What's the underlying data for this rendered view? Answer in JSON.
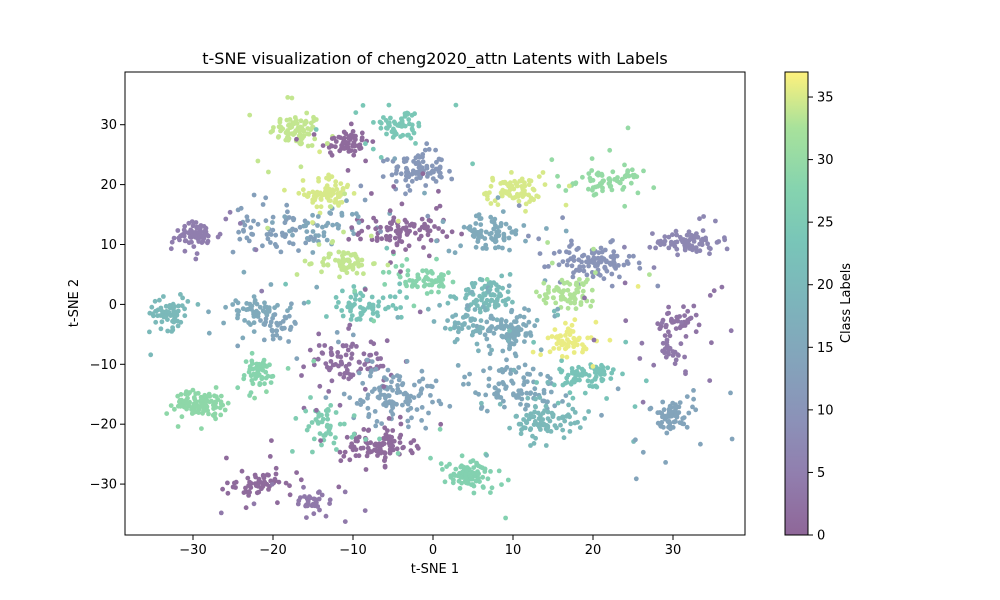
{
  "chart_data": {
    "type": "scatter",
    "title": "t-SNE visualization of cheng2020_attn Latents with Labels",
    "xlabel": "t-SNE 1",
    "ylabel": "t-SNE 2",
    "xlim": [
      -38.5,
      39
    ],
    "ylim": [
      -38.5,
      38.8
    ],
    "xticks": [
      -30,
      -20,
      -10,
      0,
      10,
      20,
      30
    ],
    "yticks": [
      -30,
      -20,
      -10,
      0,
      10,
      20,
      30
    ],
    "grid": false,
    "colormap": "viridis",
    "point_alpha": 0.6,
    "colorbar": {
      "label": "Class Labels",
      "range": [
        0,
        37
      ],
      "ticks": [
        0,
        5,
        10,
        15,
        20,
        25,
        30,
        35
      ]
    },
    "clusters": [
      {
        "x": -17,
        "y": 29,
        "label": 34,
        "count": 70,
        "sx": 1.6,
        "sy": 1.3
      },
      {
        "x": -11,
        "y": 27,
        "label": 1,
        "count": 60,
        "sx": 1.5,
        "sy": 1.2
      },
      {
        "x": -4,
        "y": 30,
        "label": 24,
        "count": 50,
        "sx": 1.6,
        "sy": 1.3
      },
      {
        "x": -2,
        "y": 22.5,
        "label": 11,
        "count": 80,
        "sx": 1.7,
        "sy": 1.4
      },
      {
        "x": -13,
        "y": 18.5,
        "label": 35,
        "count": 70,
        "sx": 1.5,
        "sy": 1.4
      },
      {
        "x": 10,
        "y": 19,
        "label": 35,
        "count": 70,
        "sx": 1.7,
        "sy": 1.2
      },
      {
        "x": 22,
        "y": 20.5,
        "label": 30,
        "count": 60,
        "sx": 2.0,
        "sy": 0.9
      },
      {
        "x": -29.5,
        "y": 11.5,
        "label": 5,
        "count": 60,
        "sx": 1.5,
        "sy": 1.1
      },
      {
        "x": -20,
        "y": 12.5,
        "label": 13,
        "count": 60,
        "sx": 2.4,
        "sy": 2.0
      },
      {
        "x": -13,
        "y": 13,
        "label": 15,
        "count": 30,
        "sx": 2.0,
        "sy": 1.5
      },
      {
        "x": -4,
        "y": 12,
        "label": 1,
        "count": 80,
        "sx": 2.6,
        "sy": 1.3
      },
      {
        "x": 7,
        "y": 12,
        "label": 16,
        "count": 70,
        "sx": 2.4,
        "sy": 1.6
      },
      {
        "x": 20,
        "y": 7,
        "label": 10,
        "count": 100,
        "sx": 2.6,
        "sy": 1.5
      },
      {
        "x": 32,
        "y": 10.5,
        "label": 7,
        "count": 70,
        "sx": 2.0,
        "sy": 1.0
      },
      {
        "x": -11,
        "y": 7,
        "label": 34,
        "count": 60,
        "sx": 1.6,
        "sy": 1.0
      },
      {
        "x": -1.5,
        "y": 4,
        "label": 28,
        "count": 50,
        "sx": 2.0,
        "sy": 1.2
      },
      {
        "x": 7,
        "y": 1.5,
        "label": 21,
        "count": 70,
        "sx": 1.8,
        "sy": 1.3
      },
      {
        "x": 17,
        "y": 2,
        "label": 33,
        "count": 60,
        "sx": 1.8,
        "sy": 1.3
      },
      {
        "x": -33,
        "y": -1.5,
        "label": 20,
        "count": 60,
        "sx": 1.2,
        "sy": 1.3
      },
      {
        "x": -22,
        "y": -1,
        "label": 16,
        "count": 50,
        "sx": 1.3,
        "sy": 1.0
      },
      {
        "x": -19,
        "y": -3,
        "label": 14,
        "count": 30,
        "sx": 1.2,
        "sy": 1.2
      },
      {
        "x": -9,
        "y": -0.5,
        "label": 23,
        "count": 60,
        "sx": 2.2,
        "sy": 1.3
      },
      {
        "x": 9.5,
        "y": -4.5,
        "label": 16,
        "count": 80,
        "sx": 1.8,
        "sy": 1.4
      },
      {
        "x": 4,
        "y": -3,
        "label": 18,
        "count": 40,
        "sx": 1.6,
        "sy": 1.6
      },
      {
        "x": 17,
        "y": -6,
        "label": 36,
        "count": 50,
        "sx": 1.2,
        "sy": 1.3
      },
      {
        "x": 30.5,
        "y": -3.5,
        "label": 3,
        "count": 40,
        "sx": 1.4,
        "sy": 1.3
      },
      {
        "x": -10,
        "y": -9.5,
        "label": 2,
        "count": 70,
        "sx": 2.6,
        "sy": 1.9
      },
      {
        "x": -5,
        "y": -15,
        "label": 14,
        "count": 110,
        "sx": 2.8,
        "sy": 2.3
      },
      {
        "x": 10,
        "y": -14,
        "label": 15,
        "count": 80,
        "sx": 3.0,
        "sy": 2.0
      },
      {
        "x": 19.5,
        "y": -12,
        "label": 23,
        "count": 70,
        "sx": 1.7,
        "sy": 1.4
      },
      {
        "x": 14,
        "y": -19.5,
        "label": 20,
        "count": 80,
        "sx": 1.9,
        "sy": 1.4
      },
      {
        "x": 30,
        "y": -18.5,
        "label": 14,
        "count": 60,
        "sx": 1.0,
        "sy": 1.2
      },
      {
        "x": 29.5,
        "y": -8,
        "label": 4,
        "count": 20,
        "sx": 1.0,
        "sy": 1.2
      },
      {
        "x": -22,
        "y": -11.5,
        "label": 28,
        "count": 50,
        "sx": 1.4,
        "sy": 1.4
      },
      {
        "x": -29,
        "y": -16.5,
        "label": 29,
        "count": 110,
        "sx": 1.6,
        "sy": 1.0
      },
      {
        "x": -13.5,
        "y": -20.5,
        "label": 26,
        "count": 40,
        "sx": 1.3,
        "sy": 2.0
      },
      {
        "x": -7,
        "y": -23.5,
        "label": 1,
        "count": 90,
        "sx": 2.2,
        "sy": 1.6
      },
      {
        "x": 4.5,
        "y": -28.5,
        "label": 27,
        "count": 90,
        "sx": 1.6,
        "sy": 1.2
      },
      {
        "x": -22,
        "y": -30,
        "label": 1,
        "count": 50,
        "sx": 1.2,
        "sy": 0.9
      },
      {
        "x": -15,
        "y": -33,
        "label": 4,
        "count": 30,
        "sx": 1.3,
        "sy": 0.8
      }
    ],
    "scatter_spread": {
      "x": [
        -36,
        36
      ],
      "y": [
        -37,
        36
      ],
      "count": 420
    }
  }
}
